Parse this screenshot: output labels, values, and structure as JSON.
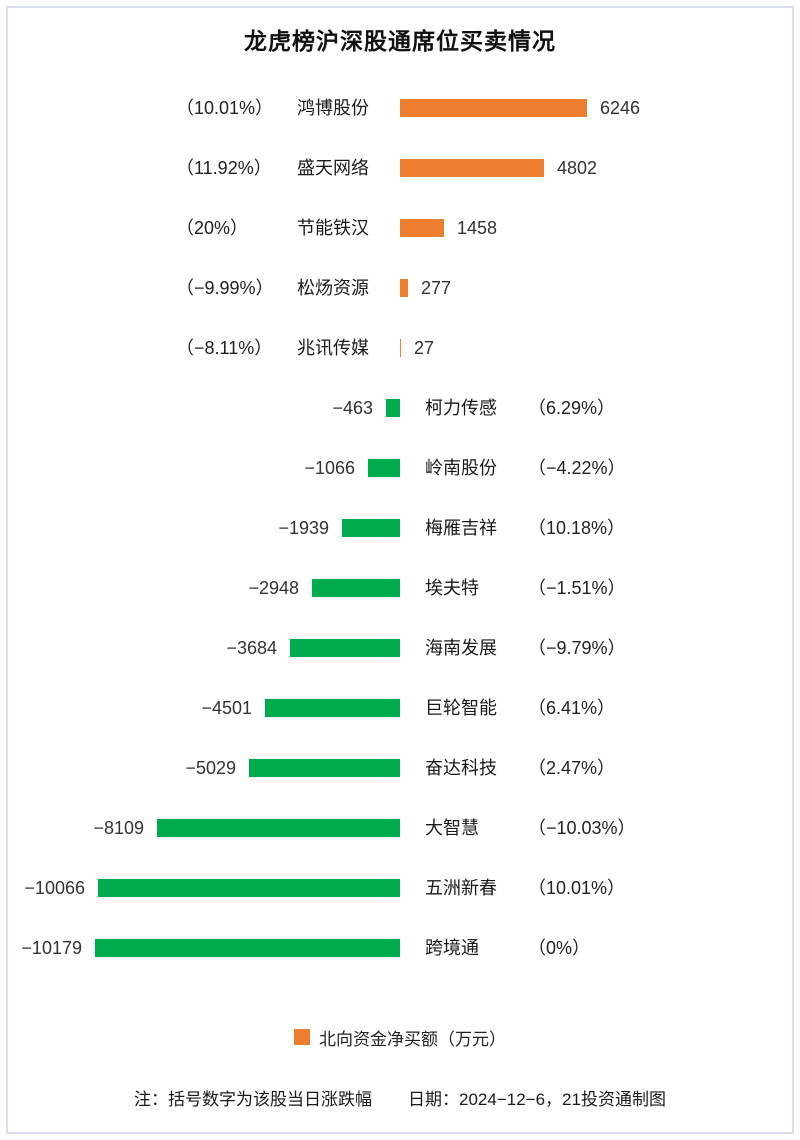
{
  "title": "龙虎榜沪深股通席位买卖情况",
  "chart_data": {
    "type": "bar",
    "orientation": "horizontal",
    "unit": "万元",
    "series_name": "北向资金净买额（万元）",
    "value_range": [
      -10179,
      6246
    ],
    "legend_position": "bottom",
    "grid": false,
    "colors": {
      "buy": "#ee7e2f",
      "sell": "#00ac4e"
    },
    "rows": [
      {
        "side": "buy",
        "name": "鸿博股份",
        "value": 6246,
        "value_label": "6246",
        "pct": 10.01,
        "pct_label": "（10.01%）"
      },
      {
        "side": "buy",
        "name": "盛天网络",
        "value": 4802,
        "value_label": "4802",
        "pct": 11.92,
        "pct_label": "（11.92%）"
      },
      {
        "side": "buy",
        "name": "节能铁汉",
        "value": 1458,
        "value_label": "1458",
        "pct": 20,
        "pct_label": "（20%）"
      },
      {
        "side": "buy",
        "name": "松炀资源",
        "value": 277,
        "value_label": "277",
        "pct": -9.99,
        "pct_label": "（−9.99%）"
      },
      {
        "side": "buy",
        "name": "兆讯传媒",
        "value": 27,
        "value_label": "27",
        "pct": -8.11,
        "pct_label": "（−8.11%）"
      },
      {
        "side": "sell",
        "name": "柯力传感",
        "value": -463,
        "value_label": "−463",
        "pct": 6.29,
        "pct_label": "（6.29%）"
      },
      {
        "side": "sell",
        "name": "岭南股份",
        "value": -1066,
        "value_label": "−1066",
        "pct": -4.22,
        "pct_label": "（−4.22%）"
      },
      {
        "side": "sell",
        "name": "梅雁吉祥",
        "value": -1939,
        "value_label": "−1939",
        "pct": 10.18,
        "pct_label": "（10.18%）"
      },
      {
        "side": "sell",
        "name": "埃夫特",
        "value": -2948,
        "value_label": "−2948",
        "pct": -1.51,
        "pct_label": "（−1.51%）"
      },
      {
        "side": "sell",
        "name": "海南发展",
        "value": -3684,
        "value_label": "−3684",
        "pct": -9.79,
        "pct_label": "（−9.79%）"
      },
      {
        "side": "sell",
        "name": "巨轮智能",
        "value": -4501,
        "value_label": "−4501",
        "pct": 6.41,
        "pct_label": "（6.41%）"
      },
      {
        "side": "sell",
        "name": "奋达科技",
        "value": -5029,
        "value_label": "−5029",
        "pct": 2.47,
        "pct_label": "（2.47%）"
      },
      {
        "side": "sell",
        "name": "大智慧",
        "value": -8109,
        "value_label": "−8109",
        "pct": -10.03,
        "pct_label": "（−10.03%）"
      },
      {
        "side": "sell",
        "name": "五洲新春",
        "value": -10066,
        "value_label": "−10066",
        "pct": 10.01,
        "pct_label": "（10.01%）"
      },
      {
        "side": "sell",
        "name": "跨境通",
        "value": -10179,
        "value_label": "−10179",
        "pct": 0,
        "pct_label": "（0%）"
      }
    ]
  },
  "legend": {
    "label": "北向资金净买额（万元）",
    "swatch_color": "#ee7e2f"
  },
  "footer": {
    "note": "注：括号数字为该股当日涨跌幅",
    "credit": "日期：2024−12−6，21投资通制图"
  }
}
